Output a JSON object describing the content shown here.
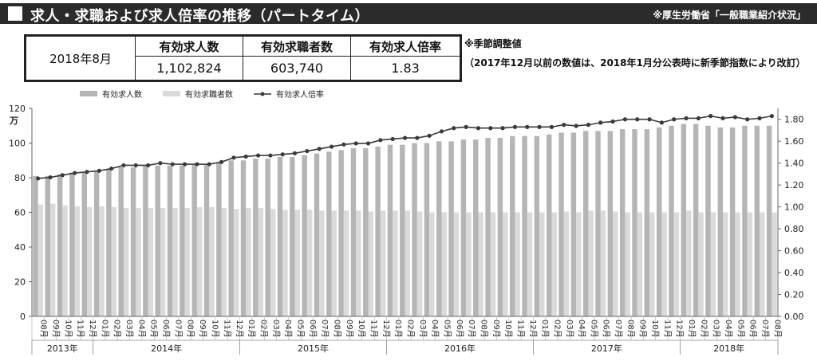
{
  "header": {
    "title": "求人・求職および求人倍率の推移（パートタイム）",
    "source": "※厚生労働省「一般職業紹介状況」"
  },
  "summary": {
    "period": "2018年8月",
    "headers": [
      "有効求人数",
      "有効求職者数",
      "有効求人倍率"
    ],
    "values": [
      "1,102,824",
      "603,740",
      "1.83"
    ]
  },
  "notes": {
    "note1": "※季節調整値",
    "note2": "（2017年12月以前の数値は、2018年1月分公表時に新季節指数により改訂）"
  },
  "colors": {
    "job_offers": "#b5b5b5",
    "job_seekers": "#dadada",
    "ratio_line": "#3a3a3a",
    "title_bar": "#2b2b2b"
  },
  "chart_data": {
    "type": "bar",
    "left_axis_unit": "万",
    "ylim_left": [
      0,
      120
    ],
    "yticks_left": [
      0,
      20,
      40,
      60,
      80,
      100,
      120
    ],
    "ylim_right": [
      0,
      1.9
    ],
    "yticks_right": [
      "0.00",
      "0.20",
      "0.40",
      "0.60",
      "0.80",
      "1.00",
      "1.20",
      "1.40",
      "1.60",
      "1.80"
    ],
    "grid": false,
    "legend_position": "top",
    "categories": [
      "08月",
      "09月",
      "10月",
      "11月",
      "12月",
      "01月",
      "02月",
      "03月",
      "04月",
      "05月",
      "06月",
      "07月",
      "08月",
      "09月",
      "10月",
      "11月",
      "12月",
      "01月",
      "02月",
      "03月",
      "04月",
      "05月",
      "06月",
      "07月",
      "08月",
      "09月",
      "10月",
      "11月",
      "12月",
      "01月",
      "02月",
      "03月",
      "04月",
      "05月",
      "06月",
      "07月",
      "08月",
      "09月",
      "10月",
      "11月",
      "12月",
      "01月",
      "02月",
      "03月",
      "04月",
      "05月",
      "06月",
      "07月",
      "08月",
      "09月",
      "10月",
      "11月",
      "12月",
      "01月",
      "02月",
      "03月",
      "04月",
      "05月",
      "06月",
      "07月",
      "08月"
    ],
    "year_groups": [
      {
        "label": "2013年",
        "count": 5
      },
      {
        "label": "2014年",
        "count": 12
      },
      {
        "label": "2015年",
        "count": 12
      },
      {
        "label": "2016年",
        "count": 12
      },
      {
        "label": "2017年",
        "count": 12
      },
      {
        "label": "2018年",
        "count": 8
      }
    ],
    "series": [
      {
        "name": "有効求人数",
        "type": "bar",
        "axis": "left",
        "values": [
          81,
          81,
          82,
          83,
          83,
          84,
          85,
          86,
          86,
          87,
          87,
          87,
          87,
          88,
          88,
          89,
          90,
          90,
          91,
          91,
          92,
          92,
          93,
          94,
          95,
          96,
          97,
          97,
          98,
          99,
          99,
          100,
          100,
          101,
          101,
          102,
          102,
          103,
          103,
          104,
          104,
          104,
          105,
          106,
          106,
          107,
          107,
          107,
          108,
          108,
          108,
          109,
          110,
          111,
          111,
          110,
          109,
          109,
          110,
          110,
          110
        ]
      },
      {
        "name": "有効求職者数",
        "type": "bar",
        "axis": "left",
        "values": [
          64.5,
          65,
          64,
          63.5,
          63,
          63.5,
          63,
          62.5,
          62.5,
          62.5,
          62.5,
          62.5,
          62.5,
          63,
          63,
          62.5,
          62,
          62.5,
          62.5,
          62,
          61.5,
          61.5,
          61.5,
          61,
          61,
          61,
          61,
          60.5,
          61,
          61,
          61,
          60.5,
          60,
          60,
          60,
          60,
          60,
          60,
          60,
          60,
          60,
          60,
          60,
          60.5,
          60,
          61,
          61,
          60.5,
          60,
          60,
          60,
          60,
          60,
          61,
          60,
          60,
          60,
          60,
          60,
          60,
          60
        ]
      },
      {
        "name": "有効求人倍率",
        "type": "line",
        "axis": "right",
        "values": [
          1.26,
          1.27,
          1.29,
          1.31,
          1.32,
          1.33,
          1.35,
          1.38,
          1.38,
          1.38,
          1.4,
          1.39,
          1.39,
          1.39,
          1.39,
          1.41,
          1.45,
          1.46,
          1.47,
          1.47,
          1.48,
          1.49,
          1.51,
          1.53,
          1.55,
          1.57,
          1.58,
          1.58,
          1.61,
          1.62,
          1.63,
          1.63,
          1.65,
          1.69,
          1.72,
          1.73,
          1.72,
          1.72,
          1.72,
          1.73,
          1.73,
          1.73,
          1.73,
          1.75,
          1.74,
          1.75,
          1.77,
          1.78,
          1.8,
          1.8,
          1.8,
          1.77,
          1.8,
          1.81,
          1.81,
          1.83,
          1.81,
          1.82,
          1.8,
          1.81,
          1.83
        ]
      }
    ]
  }
}
